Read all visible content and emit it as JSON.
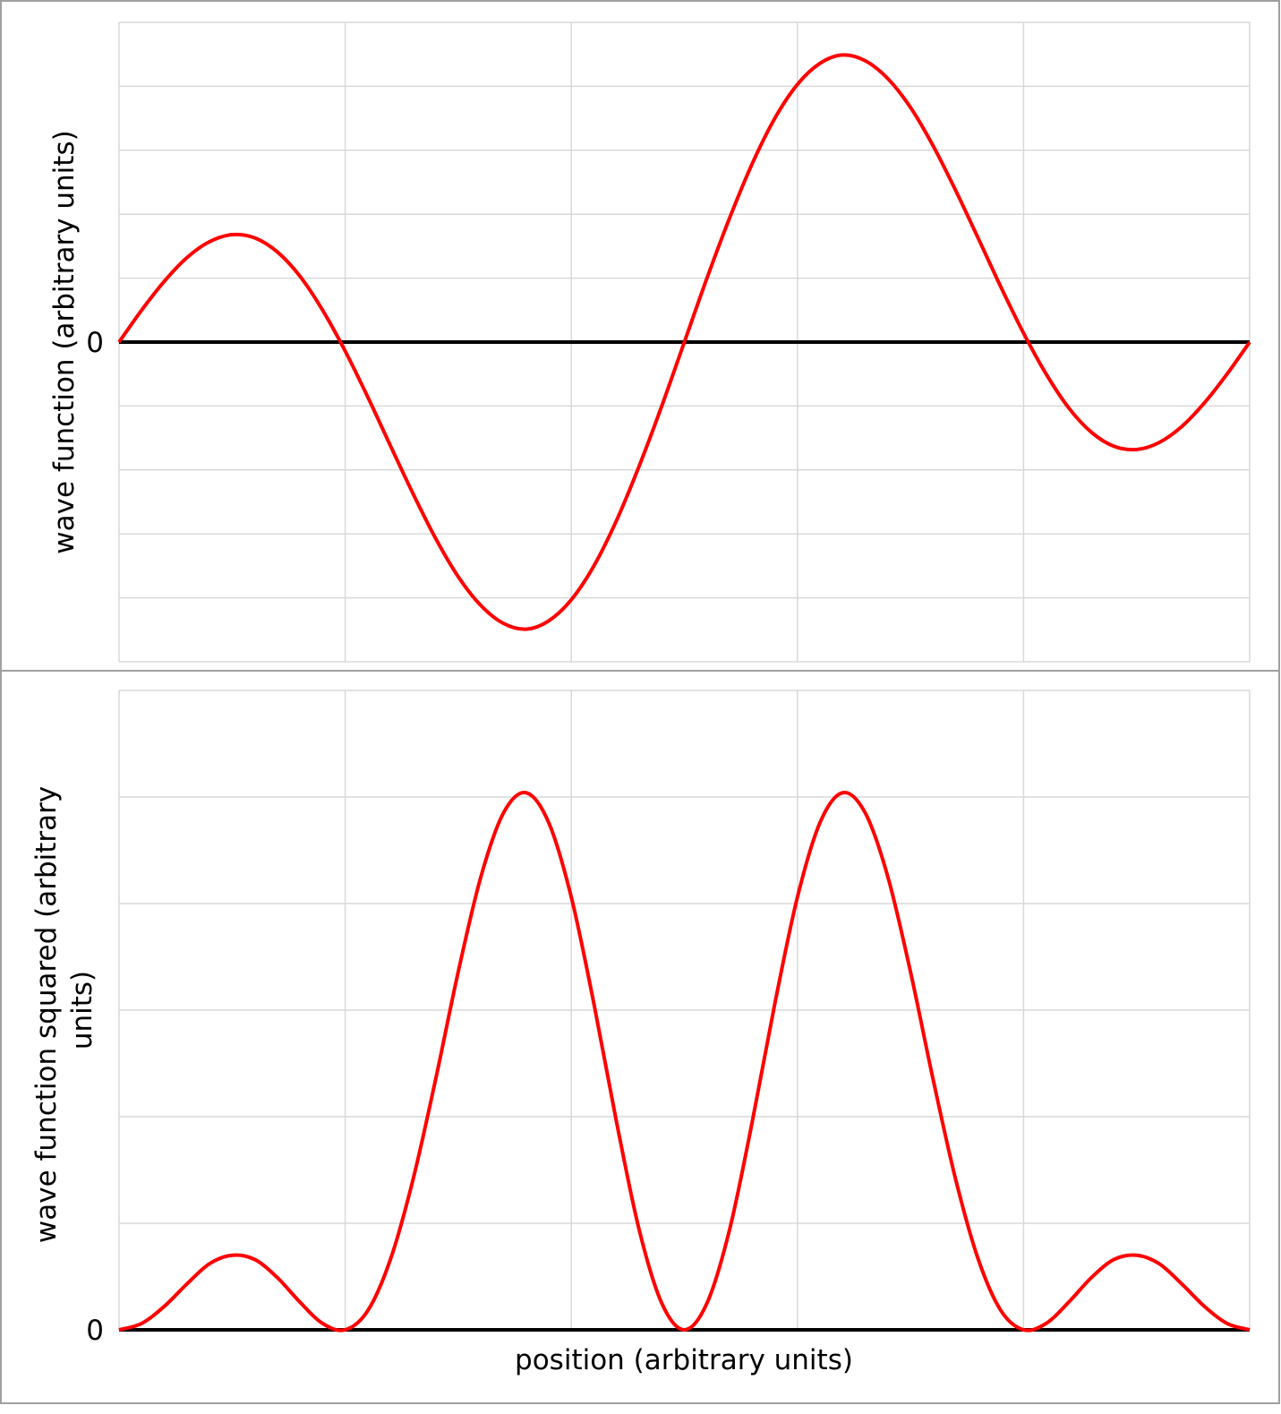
{
  "chart_data": [
    {
      "type": "line",
      "title": "",
      "xlabel": "",
      "ylabel": "wave function (arbitrary units)",
      "y_tick_labels": [
        "0"
      ],
      "xlim": [
        0,
        5
      ],
      "ylim": [
        -5,
        5
      ],
      "grid": true,
      "zero_line": true,
      "line_color": "#ff0000",
      "x": [
        0,
        0.1,
        0.2,
        0.3,
        0.4,
        0.5,
        0.6,
        0.7,
        0.8,
        0.9,
        1.0,
        1.1,
        1.2,
        1.3,
        1.4,
        1.5,
        1.6,
        1.7,
        1.8,
        1.9,
        2.0,
        2.1,
        2.2,
        2.3,
        2.4,
        2.5,
        2.6,
        2.7,
        2.8,
        2.9,
        3.0,
        3.1,
        3.2,
        3.3,
        3.4,
        3.5,
        3.6,
        3.7,
        3.8,
        3.9,
        4.0,
        4.1,
        4.2,
        4.3,
        4.4,
        4.5,
        4.6,
        4.7,
        4.8,
        4.9,
        5.0
      ],
      "y": [
        0,
        0.5,
        0.95,
        1.32,
        1.57,
        1.68,
        1.63,
        1.41,
        1.03,
        0.5,
        -0.14,
        -0.86,
        -1.62,
        -2.37,
        -3.07,
        -3.67,
        -4.12,
        -4.4,
        -4.49,
        -4.36,
        -4.03,
        -3.5,
        -2.79,
        -1.94,
        -1.0,
        0,
        1.0,
        1.94,
        2.79,
        3.5,
        4.03,
        4.36,
        4.49,
        4.4,
        4.12,
        3.67,
        3.07,
        2.37,
        1.62,
        0.86,
        0.14,
        -0.5,
        -1.03,
        -1.41,
        -1.63,
        -1.68,
        -1.57,
        -1.32,
        -0.95,
        -0.5,
        0
      ]
    },
    {
      "type": "line",
      "title": "",
      "xlabel": "position (arbitrary units)",
      "ylabel": "wave function squared (arbitrary units)",
      "y_tick_labels": [
        "0"
      ],
      "xlim": [
        0,
        5
      ],
      "ylim": [
        0,
        6
      ],
      "grid": true,
      "zero_line": true,
      "line_color": "#ff0000",
      "x": [
        0,
        0.1,
        0.2,
        0.3,
        0.4,
        0.5,
        0.6,
        0.7,
        0.8,
        0.9,
        1.0,
        1.1,
        1.2,
        1.3,
        1.4,
        1.5,
        1.6,
        1.7,
        1.8,
        1.9,
        2.0,
        2.1,
        2.2,
        2.3,
        2.4,
        2.5,
        2.6,
        2.7,
        2.8,
        2.9,
        3.0,
        3.1,
        3.2,
        3.3,
        3.4,
        3.5,
        3.6,
        3.7,
        3.8,
        3.9,
        4.0,
        4.1,
        4.2,
        4.3,
        4.4,
        4.5,
        4.6,
        4.7,
        4.8,
        4.9,
        5.0
      ],
      "y": [
        0,
        0.06,
        0.22,
        0.43,
        0.62,
        0.7,
        0.66,
        0.49,
        0.26,
        0.06,
        0.0,
        0.18,
        0.66,
        1.41,
        2.35,
        3.36,
        4.25,
        4.85,
        5.04,
        4.76,
        4.06,
        3.06,
        1.95,
        0.94,
        0.25,
        0,
        0.25,
        0.94,
        1.95,
        3.06,
        4.06,
        4.76,
        5.04,
        4.85,
        4.25,
        3.36,
        2.35,
        1.41,
        0.66,
        0.18,
        0.0,
        0.06,
        0.26,
        0.49,
        0.66,
        0.7,
        0.62,
        0.43,
        0.22,
        0.06,
        0
      ]
    }
  ]
}
